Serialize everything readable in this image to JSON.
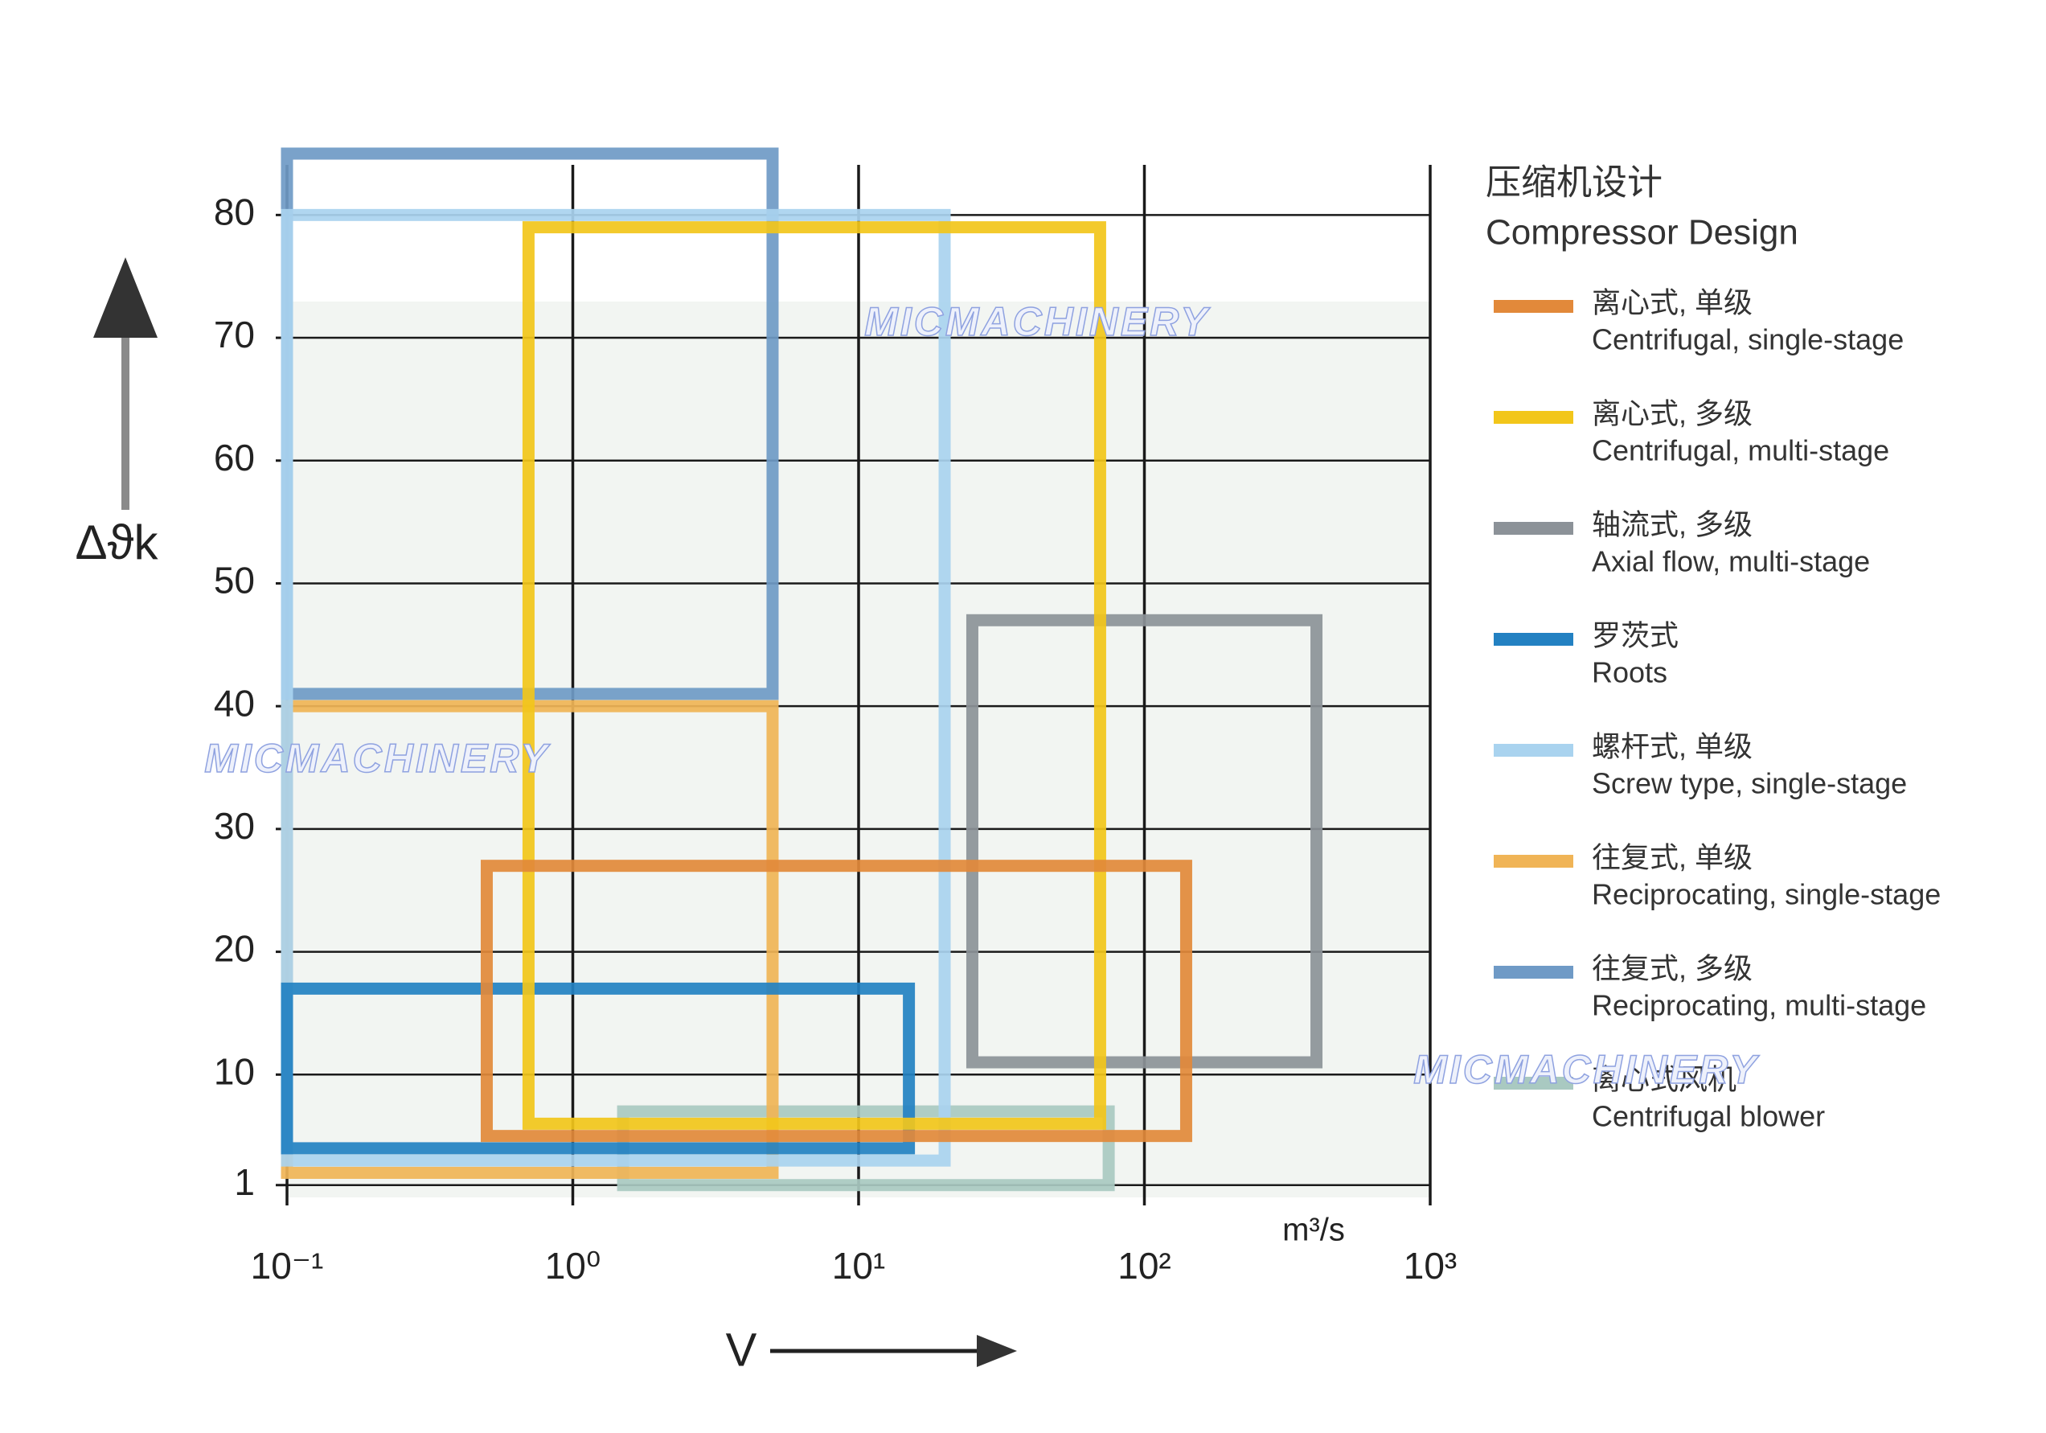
{
  "chart_data": {
    "type": "range",
    "legend_title": [
      "压缩机设计",
      "Compressor Design"
    ],
    "y_label": "Δϑk",
    "x_label": "V",
    "x_unit": "m³/s",
    "watermark": "MICMACHINERY",
    "xscale": "log",
    "grid": true,
    "xlim": [
      0.1,
      1000
    ],
    "xticks": [
      {
        "value": 0.1,
        "label": "10⁻¹"
      },
      {
        "value": 1,
        "label": "10⁰"
      },
      {
        "value": 10,
        "label": "10¹"
      },
      {
        "value": 100,
        "label": "10²"
      },
      {
        "value": 1000,
        "label": "10³"
      }
    ],
    "ylim": [
      0,
      85
    ],
    "yticks": [
      1,
      10,
      20,
      30,
      40,
      50,
      60,
      70,
      80
    ],
    "series": [
      {
        "name": "Centrifugal, single-stage",
        "name_cn": "离心式, 单级",
        "color": "#e2893a",
        "xrange": [
          0.5,
          140
        ],
        "yrange": [
          5,
          27
        ]
      },
      {
        "name": "Centrifugal, multi-stage",
        "name_cn": "离心式, 多级",
        "color": "#f2c61a",
        "xrange": [
          0.7,
          70
        ],
        "yrange": [
          6,
          79
        ]
      },
      {
        "name": "Axial flow, multi-stage",
        "name_cn": "轴流式, 多级",
        "color": "#8c9298",
        "xrange": [
          25,
          400
        ],
        "yrange": [
          11,
          47
        ]
      },
      {
        "name": "Roots",
        "name_cn": "罗茨式",
        "color": "#2381c2",
        "xrange": [
          0.1,
          15
        ],
        "yrange": [
          4,
          17
        ]
      },
      {
        "name": "Screw type, single-stage",
        "name_cn": "螺杆式, 单级",
        "color": "#a9d3ef",
        "xrange": [
          0.1,
          20
        ],
        "yrange": [
          3,
          80
        ]
      },
      {
        "name": "Reciprocating, single-stage",
        "name_cn": "往复式, 单级",
        "color": "#f0b456",
        "xrange": [
          0.1,
          5
        ],
        "yrange": [
          2,
          40
        ]
      },
      {
        "name": "Reciprocating, multi-stage",
        "name_cn": "往复式, 多级",
        "color": "#6f9ac6",
        "xrange": [
          0.1,
          5
        ],
        "yrange": [
          41,
          85
        ]
      },
      {
        "name": "Centrifugal blower",
        "name_cn": "离心式风机",
        "color": "#a9c9c1",
        "xrange": [
          1.5,
          75
        ],
        "yrange": [
          1,
          7
        ]
      }
    ]
  }
}
